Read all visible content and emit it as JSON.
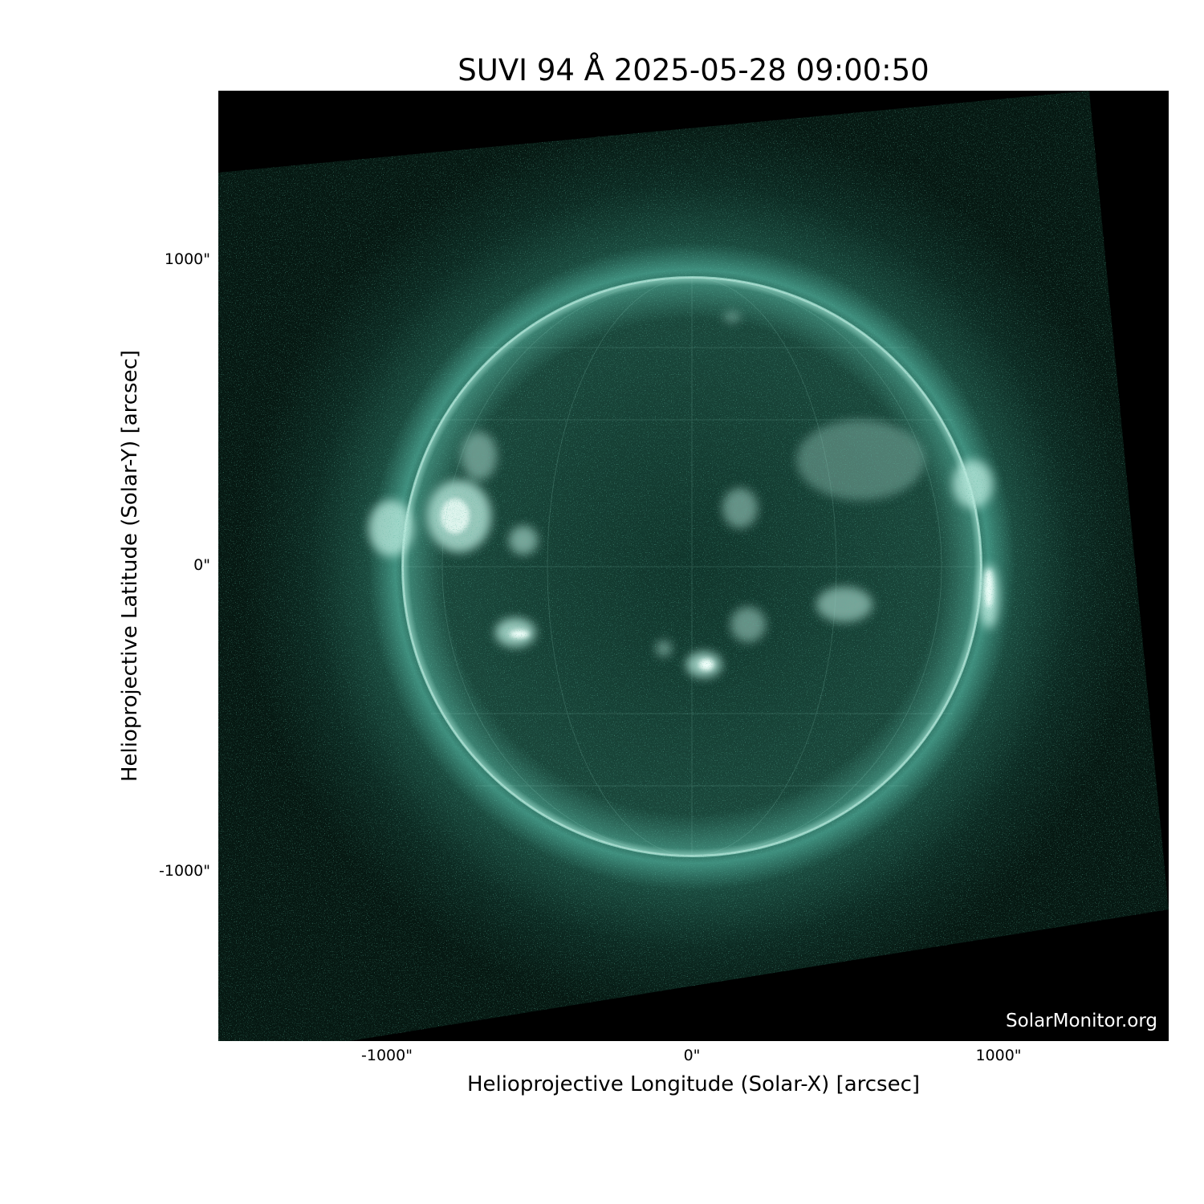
{
  "title": "SUVI 94 Å 2025-05-28 09:00:50",
  "xlabel": "Helioprojective Longitude (Solar-X) [arcsec]",
  "ylabel": "Helioprojective Latitude (Solar-Y) [arcsec]",
  "xticks": [
    "-1000\"",
    "0\"",
    "1000\""
  ],
  "yticks": [
    "1000\"",
    "0\"",
    "-1000\""
  ],
  "watermark": "SolarMonitor.org",
  "image": {
    "subject": "solar disk, extreme ultraviolet 94 Å",
    "colormap": "black-teal-white",
    "accent_color": "#2f8f7a"
  }
}
